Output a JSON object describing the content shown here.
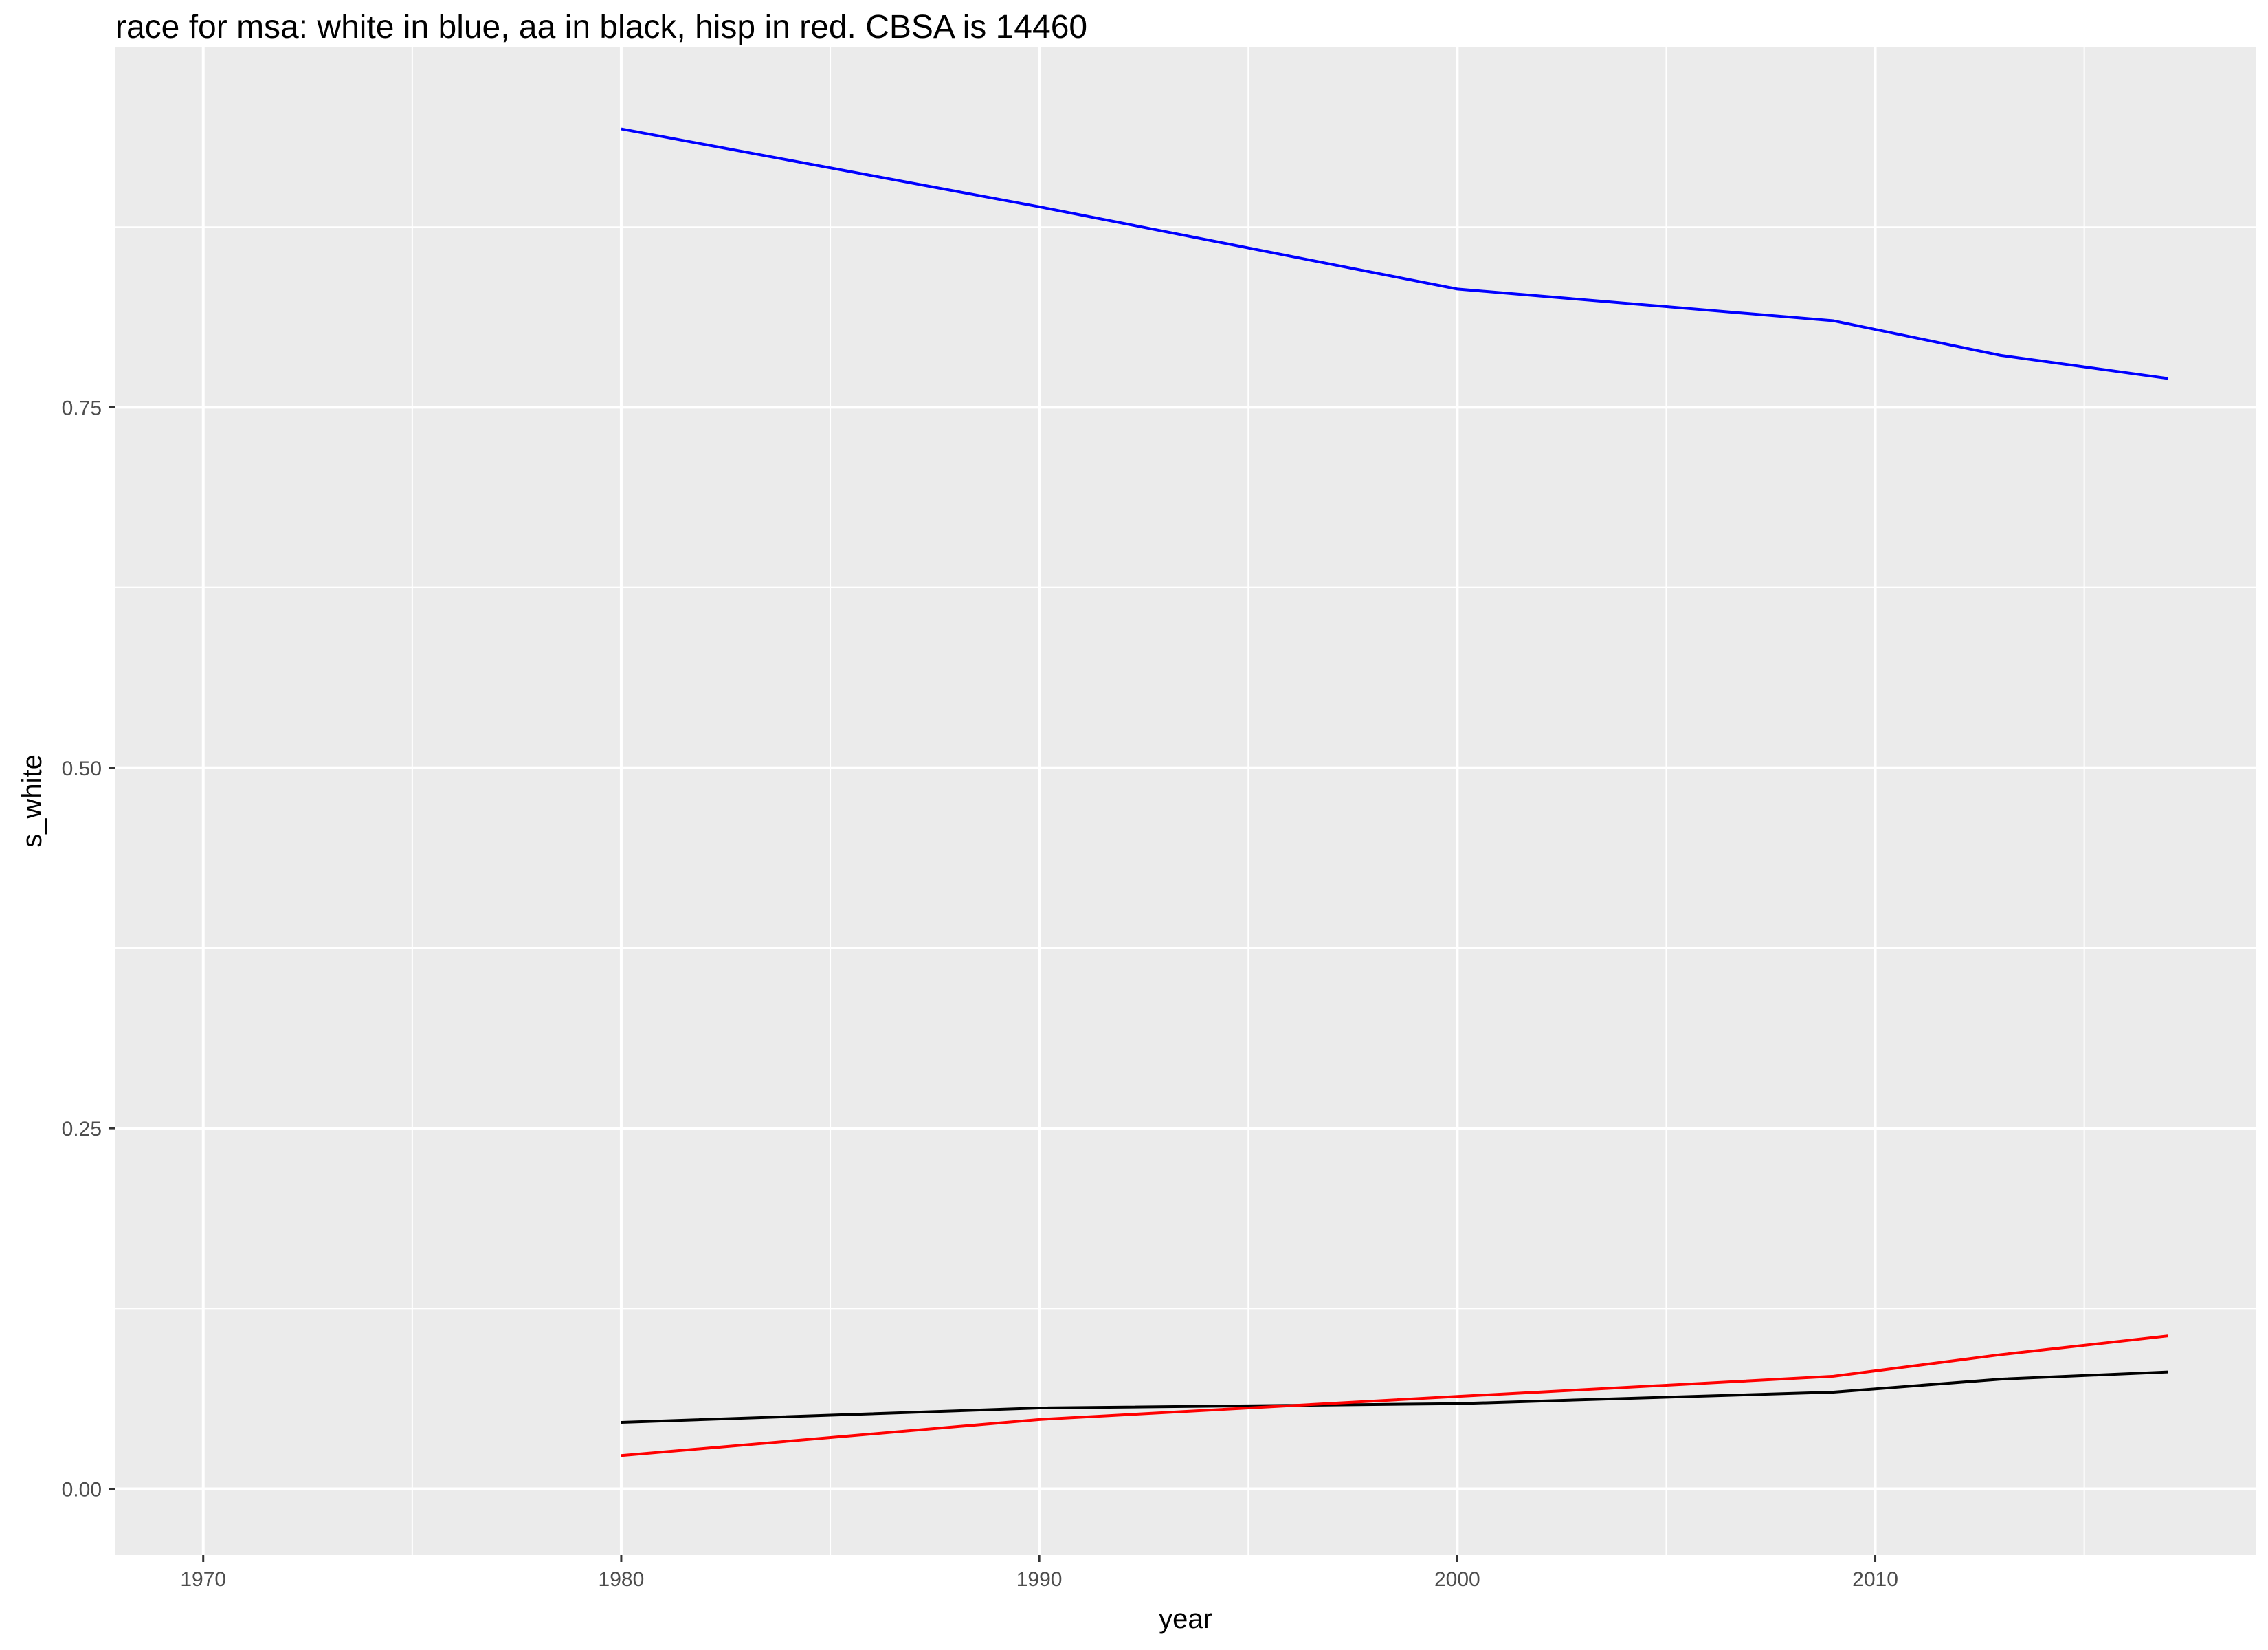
{
  "chart_data": {
    "type": "line",
    "title": "race for msa: white in blue, aa in black, hisp in red. CBSA is 14460",
    "xlabel": "year",
    "ylabel": "s_white",
    "xlim": [
      1967.9,
      2019.1
    ],
    "ylim": [
      -0.046,
      1.0
    ],
    "x_ticks": [
      "1970",
      "1980",
      "1990",
      "2000",
      "2010"
    ],
    "y_ticks": [
      "0.00",
      "0.25",
      "0.50",
      "0.75"
    ],
    "grid": true,
    "legend": "none",
    "x": [
      1980,
      1990,
      2000,
      2009,
      2013,
      2017
    ],
    "series": [
      {
        "color": "#0000ff",
        "values": [
          0.943,
          0.889,
          0.832,
          0.81,
          0.786,
          0.77
        ]
      },
      {
        "color": "#000000",
        "values": [
          0.046,
          0.056,
          0.059,
          0.067,
          0.076,
          0.081
        ]
      },
      {
        "color": "#ff0000",
        "values": [
          0.023,
          0.048,
          0.064,
          0.078,
          0.093,
          0.106
        ]
      }
    ],
    "panel_background": "#ebebeb",
    "grid_color": "#ffffff"
  }
}
